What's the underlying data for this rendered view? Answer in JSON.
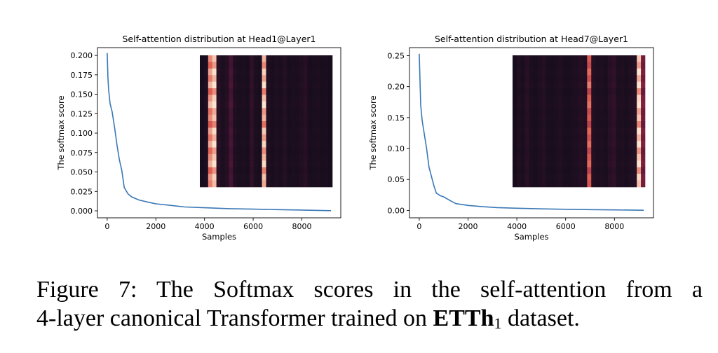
{
  "chart_data": [
    {
      "type": "line",
      "title": "Self-attention distribution at Head1@Layer1",
      "xlabel": "Samples",
      "ylabel": "The softmax score",
      "xlim": [
        -400,
        9600
      ],
      "ylim": [
        -0.009,
        0.21
      ],
      "xticks": [
        0,
        2000,
        4000,
        6000,
        8000
      ],
      "yticks": [
        0.0,
        0.025,
        0.05,
        0.075,
        0.1,
        0.125,
        0.15,
        0.175,
        0.2
      ],
      "ytick_labels": [
        "0.000",
        "0.025",
        "0.050",
        "0.075",
        "0.100",
        "0.125",
        "0.150",
        "0.175",
        "0.200"
      ],
      "xtick_labels": [
        "0",
        "2000",
        "4000",
        "6000",
        "8000"
      ],
      "color": "#3a78b5",
      "series": [
        {
          "name": "softmax score",
          "x": [
            0,
            30,
            60,
            120,
            200,
            300,
            400,
            500,
            600,
            700,
            850,
            1000,
            1300,
            1700,
            2000,
            2600,
            3200,
            4000,
            5000,
            6000,
            7000,
            8000,
            9200
          ],
          "y": [
            0.203,
            0.172,
            0.155,
            0.138,
            0.128,
            0.108,
            0.085,
            0.066,
            0.052,
            0.03,
            0.022,
            0.018,
            0.014,
            0.011,
            0.009,
            0.007,
            0.005,
            0.004,
            0.0028,
            0.0022,
            0.0015,
            0.001,
            0.0002
          ]
        }
      ],
      "inset": {
        "type": "heatmap",
        "colormap": "rocket",
        "columns": 32,
        "column_intensities": [
          0.05,
          0.08,
          0.85,
          0.95,
          0.15,
          0.08,
          0.12,
          0.3,
          0.1,
          0.07,
          0.08,
          0.06,
          0.18,
          0.08,
          0.06,
          0.92,
          0.1,
          0.06,
          0.09,
          0.07,
          0.12,
          0.06,
          0.08,
          0.07,
          0.1,
          0.14,
          0.06,
          0.07,
          0.08,
          0.06,
          0.07,
          0.05
        ],
        "row_modulation": [
          1.0,
          0.92,
          1.05,
          0.97,
          1.08,
          0.9,
          1.02,
          1.1,
          0.95,
          1.0,
          0.88,
          1.04,
          0.96,
          1.06,
          0.93,
          1.0,
          1.07,
          0.91,
          1.02,
          0.98
        ]
      }
    },
    {
      "type": "line",
      "title": "Self-attention distribution at Head7@Layer1",
      "xlabel": "Samples",
      "ylabel": "The softmax score",
      "xlim": [
        -400,
        9600
      ],
      "ylim": [
        -0.012,
        0.263
      ],
      "xticks": [
        0,
        2000,
        4000,
        6000,
        8000
      ],
      "yticks": [
        0.0,
        0.05,
        0.1,
        0.15,
        0.2,
        0.25
      ],
      "ytick_labels": [
        "0.00",
        "0.05",
        "0.10",
        "0.15",
        "0.20",
        "0.25"
      ],
      "xtick_labels": [
        "0",
        "2000",
        "4000",
        "6000",
        "8000"
      ],
      "color": "#3a78b5",
      "series": [
        {
          "name": "softmax score",
          "x": [
            0,
            30,
            60,
            120,
            200,
            300,
            400,
            500,
            600,
            700,
            850,
            1000,
            1300,
            1500,
            2000,
            2600,
            3200,
            4000,
            5000,
            6000,
            7000,
            8000,
            9200
          ],
          "y": [
            0.253,
            0.21,
            0.17,
            0.145,
            0.125,
            0.1,
            0.07,
            0.055,
            0.04,
            0.028,
            0.024,
            0.022,
            0.015,
            0.011,
            0.008,
            0.006,
            0.0045,
            0.0035,
            0.0025,
            0.0018,
            0.0012,
            0.0008,
            0.0002
          ]
        }
      ],
      "inset": {
        "type": "heatmap",
        "colormap": "rocket",
        "columns": 32,
        "column_intensities": [
          0.05,
          0.1,
          0.07,
          0.14,
          0.08,
          0.06,
          0.09,
          0.12,
          0.07,
          0.06,
          0.08,
          0.1,
          0.07,
          0.06,
          0.08,
          0.09,
          0.12,
          0.1,
          0.75,
          0.12,
          0.08,
          0.09,
          0.07,
          0.14,
          0.18,
          0.08,
          0.09,
          0.07,
          0.1,
          0.12,
          0.95,
          0.45
        ],
        "row_modulation": [
          1.0,
          0.93,
          1.06,
          0.96,
          1.1,
          0.9,
          1.03,
          1.08,
          0.94,
          1.0,
          0.89,
          1.05,
          0.97,
          1.07,
          0.92,
          1.0,
          1.06,
          0.9,
          1.03,
          0.99
        ]
      }
    }
  ],
  "caption": {
    "line1": "Figure 7: The Softmax scores in the self-attention from a",
    "line2_pre": "4-layer canonical Transformer trained on ",
    "line2_bold": "ETTh",
    "line2_sub": "1",
    "line2_post": " dataset."
  }
}
